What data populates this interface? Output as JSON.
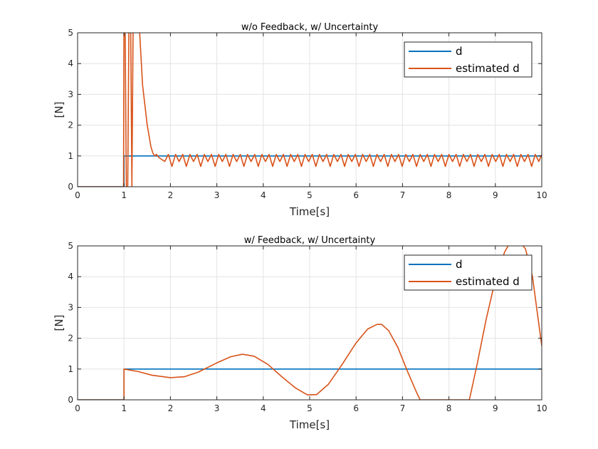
{
  "chart_data": [
    {
      "type": "line",
      "title": "w/o Feedback, w/ Uncertainty",
      "xlabel": "Time[s]",
      "ylabel": "[N]",
      "xlim": [
        0,
        10
      ],
      "ylim": [
        0,
        5
      ],
      "xticks": [
        "0",
        "1",
        "2",
        "3",
        "4",
        "5",
        "6",
        "7",
        "8",
        "9",
        "10"
      ],
      "yticks": [
        "0",
        "1",
        "2",
        "3",
        "4",
        "5"
      ],
      "grid": true,
      "legend": "top-right",
      "series": [
        {
          "name": "d",
          "color": "#0072BD",
          "x": [
            0,
            1,
            1,
            10
          ],
          "y": [
            0,
            0,
            1,
            1
          ]
        },
        {
          "name": "estimated d",
          "color": "#D95319",
          "x": [
            0,
            0.99,
            1.0,
            1.02,
            1.05,
            1.08,
            1.11,
            1.14,
            1.17,
            1.2,
            1.3,
            1.4,
            1.5,
            1.58,
            1.62,
            1.66,
            1.7,
            1.75,
            1.8
          ],
          "y": [
            0,
            0,
            6,
            6,
            0,
            0,
            6,
            6,
            0,
            6,
            6,
            3.3,
            2.0,
            1.3,
            1.1,
            1.0,
            1.05,
            0.95,
            0.9
          ],
          "oscillation": {
            "x_start": 1.8,
            "x_end": 10,
            "period": 0.155,
            "upper": 1.05,
            "lower_a": 0.82,
            "lower_b": 0.66
          }
        }
      ]
    },
    {
      "type": "line",
      "title": "w/ Feedback, w/ Uncertainty",
      "xlabel": "Time[s]",
      "ylabel": "[N]",
      "xlim": [
        0,
        10
      ],
      "ylim": [
        0,
        5
      ],
      "xticks": [
        "0",
        "1",
        "2",
        "3",
        "4",
        "5",
        "6",
        "7",
        "8",
        "9",
        "10"
      ],
      "yticks": [
        "0",
        "1",
        "2",
        "3",
        "4",
        "5"
      ],
      "grid": true,
      "legend": "top-right",
      "series": [
        {
          "name": "d",
          "color": "#0072BD",
          "x": [
            0,
            1,
            1,
            10
          ],
          "y": [
            0,
            0,
            1,
            1
          ]
        },
        {
          "name": "estimated d",
          "color": "#D95319",
          "x": [
            0,
            1,
            1,
            1.3,
            1.6,
            2.0,
            2.3,
            2.6,
            3.0,
            3.3,
            3.55,
            3.8,
            4.1,
            4.4,
            4.7,
            4.95,
            5.15,
            5.4,
            5.7,
            6.0,
            6.25,
            6.45,
            6.55,
            6.7,
            6.9,
            7.1,
            7.3,
            7.38,
            8.44,
            8.6,
            8.8,
            9.0,
            9.2,
            9.35,
            9.5,
            9.65,
            9.8,
            10.0
          ],
          "y": [
            0,
            0,
            1.0,
            0.92,
            0.8,
            0.72,
            0.75,
            0.9,
            1.2,
            1.4,
            1.48,
            1.42,
            1.15,
            0.75,
            0.38,
            0.16,
            0.17,
            0.5,
            1.15,
            1.85,
            2.3,
            2.45,
            2.45,
            2.25,
            1.7,
            0.95,
            0.25,
            0,
            0,
            1.1,
            2.6,
            3.9,
            4.8,
            5.2,
            5.2,
            4.9,
            4.0,
            1.75
          ]
        }
      ]
    }
  ]
}
